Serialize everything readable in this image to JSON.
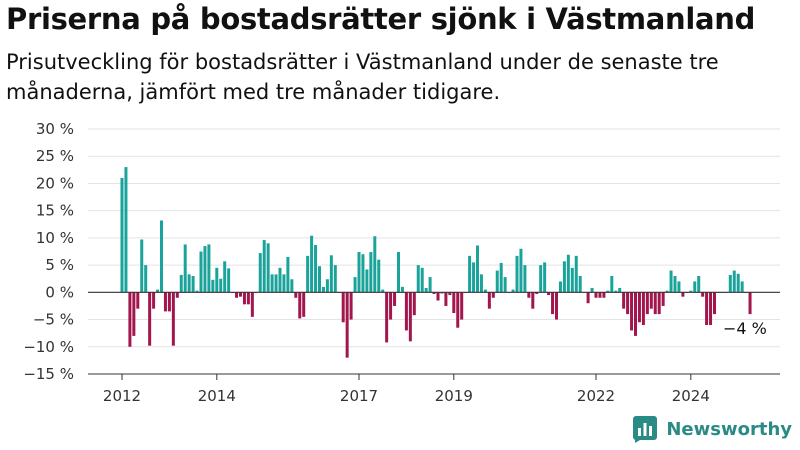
{
  "header": {
    "title": "Priserna på bostadsrätter sjönk i Västmanland",
    "subtitle": "Prisutveckling för bostadsrätter i Västmanland under de senaste tre månaderna, jämfört med tre månader tidigare."
  },
  "brand": {
    "name": "Newsworthy",
    "icon": "bar-chart-logo-icon"
  },
  "colors": {
    "positive": "#1aa39a",
    "negative": "#a3154d",
    "grid": "#e3e3e3",
    "axis": "#333333",
    "text": "#333333"
  },
  "chart_data": {
    "type": "bar",
    "unit": "%",
    "ylim": [
      -15,
      30
    ],
    "yticks": [
      30,
      25,
      20,
      15,
      10,
      5,
      0,
      -5,
      -10,
      -15
    ],
    "ytick_labels": [
      "30 %",
      "25 %",
      "20 %",
      "15 %",
      "10 %",
      "5 %",
      "0 %",
      "−5 %",
      "−10 %",
      "−15 %"
    ],
    "xticks": [
      {
        "label": "2012",
        "year": 2012
      },
      {
        "label": "2014",
        "year": 2014
      },
      {
        "label": "2017",
        "year": 2017
      },
      {
        "label": "2019",
        "year": 2019
      },
      {
        "label": "2022",
        "year": 2022
      },
      {
        "label": "2024",
        "year": 2024
      }
    ],
    "grid": true,
    "start": "2012-01",
    "annotation": {
      "text": "−4 %",
      "target": "last"
    },
    "values": [
      21,
      23,
      -10,
      -8,
      -3,
      9.7,
      5,
      -9.8,
      -3,
      0.5,
      13.2,
      -3.5,
      -3.5,
      -9.8,
      -1,
      3.2,
      8.8,
      3.3,
      3,
      0.3,
      7.5,
      8.5,
      8.8,
      2.3,
      4.5,
      2.5,
      5.7,
      4.4,
      0,
      -1,
      -0.8,
      -2.2,
      -2.2,
      -4.5,
      0,
      7.2,
      9.6,
      9,
      3.3,
      3.3,
      4.5,
      3.3,
      6.5,
      2.4,
      -1,
      -4.8,
      -4.5,
      6.7,
      10.4,
      8.7,
      4.8,
      1,
      2.4,
      6.8,
      5,
      0,
      -5.5,
      -12,
      -5,
      2.8,
      7.4,
      7,
      4.2,
      7.4,
      10.3,
      6,
      0.5,
      -9.2,
      -5,
      -2.5,
      7.4,
      1,
      -7,
      -9,
      -4.2,
      5,
      4.5,
      0.8,
      2.8,
      -0.3,
      -1.5,
      -0.2,
      -2.5,
      -0.5,
      -3.8,
      -6.5,
      -5,
      0,
      6.7,
      5.5,
      8.6,
      3.3,
      0.5,
      -3,
      -1,
      4,
      5.4,
      2.8,
      0,
      0.5,
      6.7,
      8,
      5,
      -1,
      -3,
      -0.3,
      5,
      5.5,
      -0.5,
      -4,
      -5,
      2,
      5.7,
      6.9,
      4.5,
      6.7,
      3,
      0,
      -2,
      0.8,
      -1,
      -1,
      -1,
      0.3,
      3,
      0.3,
      0.8,
      -3,
      -4,
      -7,
      -8,
      -5.5,
      -6,
      -4,
      -3,
      -4,
      -4,
      -2.5,
      0.3,
      4,
      3,
      2,
      -0.8,
      0,
      0.3,
      2,
      3,
      -0.8,
      -6,
      -6,
      -4,
      0,
      0,
      0,
      3.2,
      4,
      3.4,
      2,
      0,
      -4
    ]
  }
}
